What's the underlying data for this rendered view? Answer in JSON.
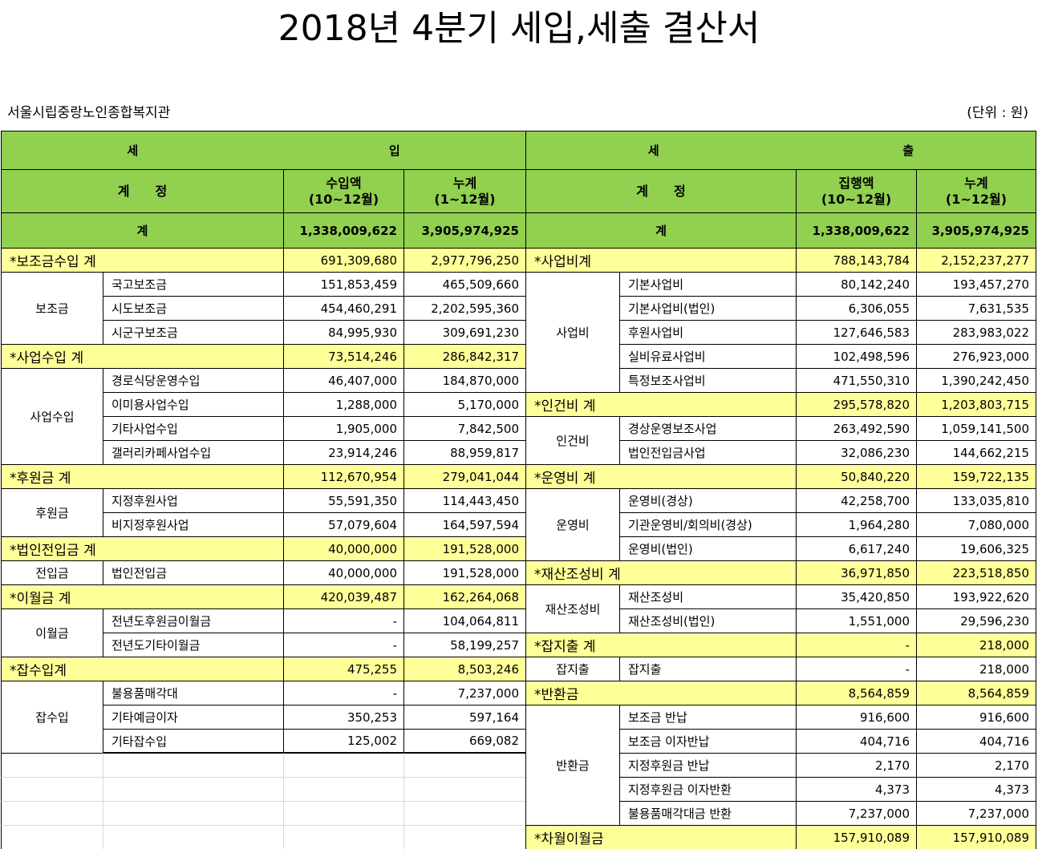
{
  "title": "2018년 4분기 세입,세출 결산서",
  "org": "서울시립중랑노인종합복지관",
  "unit": "(단위 : 원)",
  "header": {
    "income_char1": "세",
    "income_char2": "입",
    "expense_char1": "세",
    "expense_char2": "출",
    "account": "계　　정",
    "income_amount": "수입액\n(10~12월)",
    "cumulative": "누계\n(1~12월)",
    "expense_amount": "집행액\n(10~12월)",
    "total_label": "계"
  },
  "totals": {
    "income_amount": "1,338,009,622",
    "income_cumulative": "3,905,974,925",
    "expense_amount": "1,338,009,622",
    "expense_cumulative": "3,905,974,925"
  },
  "income_rows": [
    {
      "type": "section",
      "label": "*보조금수입 계",
      "amount": "691,309,680",
      "cumulative": "2,977,796,250"
    },
    {
      "type": "item",
      "group": "보조금",
      "item": "국고보조금",
      "amount": "151,853,459",
      "cumulative": "465,509,660"
    },
    {
      "type": "item",
      "group": "",
      "item": "시도보조금",
      "amount": "454,460,291",
      "cumulative": "2,202,595,360"
    },
    {
      "type": "item",
      "group": "",
      "item": "시군구보조금",
      "amount": "84,995,930",
      "cumulative": "309,691,230"
    },
    {
      "type": "section",
      "label": "*사업수입 계",
      "amount": "73,514,246",
      "cumulative": "286,842,317"
    },
    {
      "type": "item",
      "group": "사업수입",
      "item": "경로식당운영수입",
      "amount": "46,407,000",
      "cumulative": "184,870,000"
    },
    {
      "type": "item",
      "group": "",
      "item": "이미용사업수입",
      "amount": "1,288,000",
      "cumulative": "5,170,000"
    },
    {
      "type": "item",
      "group": "",
      "item": "기타사업수입",
      "amount": "1,905,000",
      "cumulative": "7,842,500"
    },
    {
      "type": "item",
      "group": "",
      "item": "갤러리카페사업수입",
      "amount": "23,914,246",
      "cumulative": "88,959,817"
    },
    {
      "type": "section",
      "label": "*후원금 계",
      "amount": "112,670,954",
      "cumulative": "279,041,044"
    },
    {
      "type": "item",
      "group": "후원금",
      "item": "지정후원사업",
      "amount": "55,591,350",
      "cumulative": "114,443,450"
    },
    {
      "type": "item",
      "group": "",
      "item": "비지정후원사업",
      "amount": "57,079,604",
      "cumulative": "164,597,594"
    },
    {
      "type": "section",
      "label": "*법인전입금 계",
      "amount": "40,000,000",
      "cumulative": "191,528,000"
    },
    {
      "type": "item",
      "group": "전입금",
      "item": "법인전입금",
      "amount": "40,000,000",
      "cumulative": "191,528,000"
    },
    {
      "type": "section",
      "label": "*이월금 계",
      "amount": "420,039,487",
      "cumulative": "162,264,068"
    },
    {
      "type": "item",
      "group": "이월금",
      "item": "전년도후원금이월금",
      "amount": "-",
      "cumulative": "104,064,811"
    },
    {
      "type": "item",
      "group": "",
      "item": "전년도기타이월금",
      "amount": "-",
      "cumulative": "58,199,257"
    },
    {
      "type": "section",
      "label": "*잡수입계",
      "amount": "475,255",
      "cumulative": "8,503,246"
    },
    {
      "type": "item",
      "group": "잡수입",
      "item": "불용품매각대",
      "amount": "-",
      "cumulative": "7,237,000"
    },
    {
      "type": "item",
      "group": "",
      "item": "기타예금이자",
      "amount": "350,253",
      "cumulative": "597,164"
    },
    {
      "type": "item",
      "group": "",
      "item": "기타잡수입",
      "amount": "125,002",
      "cumulative": "669,082"
    }
  ],
  "income_groups": [
    {
      "label": "보조금",
      "start": 1,
      "span": 3
    },
    {
      "label": "사업수입",
      "start": 5,
      "span": 4
    },
    {
      "label": "후원금",
      "start": 10,
      "span": 2
    },
    {
      "label": "전입금",
      "start": 13,
      "span": 1
    },
    {
      "label": "이월금",
      "start": 15,
      "span": 2
    },
    {
      "label": "잡수입",
      "start": 18,
      "span": 3
    }
  ],
  "expense_rows": [
    {
      "type": "section",
      "label": "*사업비계",
      "amount": "788,143,784",
      "cumulative": "2,152,237,277"
    },
    {
      "type": "item",
      "item": "기본사업비",
      "amount": "80,142,240",
      "cumulative": "193,457,270"
    },
    {
      "type": "item",
      "item": "기본사업비(법인)",
      "amount": "6,306,055",
      "cumulative": "7,631,535"
    },
    {
      "type": "item",
      "item": "후원사업비",
      "amount": "127,646,583",
      "cumulative": "283,983,022"
    },
    {
      "type": "item",
      "item": "실비유료사업비",
      "amount": "102,498,596",
      "cumulative": "276,923,000"
    },
    {
      "type": "item",
      "item": "특정보조사업비",
      "amount": "471,550,310",
      "cumulative": "1,390,242,450"
    },
    {
      "type": "section",
      "label": "*인건비 계",
      "amount": "295,578,820",
      "cumulative": "1,203,803,715"
    },
    {
      "type": "item",
      "item": "경상운영보조사업",
      "amount": "263,492,590",
      "cumulative": "1,059,141,500"
    },
    {
      "type": "item",
      "item": "법인전입금사업",
      "amount": "32,086,230",
      "cumulative": "144,662,215"
    },
    {
      "type": "section",
      "label": "*운영비 계",
      "amount": "50,840,220",
      "cumulative": "159,722,135"
    },
    {
      "type": "item",
      "item": "운영비(경상)",
      "amount": "42,258,700",
      "cumulative": "133,035,810"
    },
    {
      "type": "item",
      "item": "기관운영비/회의비(경상)",
      "amount": "1,964,280",
      "cumulative": "7,080,000"
    },
    {
      "type": "item",
      "item": "운영비(법인)",
      "amount": "6,617,240",
      "cumulative": "19,606,325"
    },
    {
      "type": "section",
      "label": "*재산조성비 계",
      "amount": "36,971,850",
      "cumulative": "223,518,850"
    },
    {
      "type": "item",
      "item": "재산조성비",
      "amount": "35,420,850",
      "cumulative": "193,922,620"
    },
    {
      "type": "item",
      "item": "재산조성비(법인)",
      "amount": "1,551,000",
      "cumulative": "29,596,230"
    },
    {
      "type": "section",
      "label": "*잡지출 계",
      "amount": "-",
      "cumulative": "218,000"
    },
    {
      "type": "item",
      "item": "잡지출",
      "amount": "-",
      "cumulative": "218,000"
    },
    {
      "type": "section",
      "label": "*반환금",
      "amount": "8,564,859",
      "cumulative": "8,564,859"
    },
    {
      "type": "item",
      "item": "보조금 반납",
      "amount": "916,600",
      "cumulative": "916,600"
    },
    {
      "type": "item",
      "item": "보조금 이자반납",
      "amount": "404,716",
      "cumulative": "404,716"
    },
    {
      "type": "item",
      "item": "지정후원금 반납",
      "amount": "2,170",
      "cumulative": "2,170"
    },
    {
      "type": "item",
      "item": "지정후원금 이자반환",
      "amount": "4,373",
      "cumulative": "4,373"
    },
    {
      "type": "item",
      "item": "불용품매각대금 반환",
      "amount": "7,237,000",
      "cumulative": "7,237,000"
    },
    {
      "type": "section",
      "label": "*차월이월금",
      "amount": "157,910,089",
      "cumulative": "157,910,089"
    }
  ],
  "expense_groups": [
    {
      "label": "사업비",
      "start": 1,
      "span": 5
    },
    {
      "label": "인건비",
      "start": 7,
      "span": 2
    },
    {
      "label": "운영비",
      "start": 10,
      "span": 3
    },
    {
      "label": "재산조성비",
      "start": 14,
      "span": 2
    },
    {
      "label": "잡지출",
      "start": 17,
      "span": 1
    },
    {
      "label": "반환금",
      "start": 19,
      "span": 5
    }
  ],
  "colors": {
    "header_green": "#92d050",
    "section_yellow": "#ffff99",
    "line": "#000000",
    "empty_grid": "#d9d9d9"
  }
}
